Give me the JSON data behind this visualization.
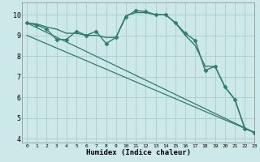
{
  "background_color": "#cce8e8",
  "grid_color": "#aacccc",
  "line_color": "#2e7d6e",
  "xlabel": "Humidex (Indice chaleur)",
  "xlim": [
    -0.5,
    23
  ],
  "ylim": [
    3.8,
    10.6
  ],
  "yticks": [
    4,
    5,
    6,
    7,
    8,
    9,
    10
  ],
  "xticks": [
    0,
    1,
    2,
    3,
    4,
    5,
    6,
    7,
    8,
    9,
    10,
    11,
    12,
    13,
    14,
    15,
    16,
    17,
    18,
    19,
    20,
    21,
    22,
    23
  ],
  "series": [
    {
      "x": [
        0,
        1,
        2,
        3,
        4,
        5,
        6,
        7,
        8,
        9,
        10,
        11,
        12,
        13,
        14,
        15,
        16,
        17,
        18,
        19,
        20,
        21,
        22,
        23
      ],
      "y": [
        9.6,
        9.5,
        9.3,
        8.8,
        8.8,
        9.2,
        9.0,
        9.2,
        8.6,
        8.9,
        9.9,
        10.2,
        10.15,
        10.0,
        10.0,
        9.6,
        9.1,
        8.75,
        7.3,
        7.5,
        6.5,
        5.9,
        4.5,
        4.3
      ],
      "marker": "D",
      "markersize": 2.5,
      "linewidth": 1.0
    },
    {
      "x": [
        0,
        1,
        2,
        3,
        4,
        5,
        6,
        7,
        8,
        9,
        10,
        11,
        12,
        13,
        14,
        15,
        16,
        17,
        18,
        19,
        20,
        21,
        22,
        23
      ],
      "y": [
        9.6,
        9.55,
        9.4,
        9.3,
        9.1,
        9.1,
        9.0,
        9.0,
        8.9,
        8.9,
        9.95,
        10.1,
        10.1,
        10.0,
        10.0,
        9.6,
        9.0,
        8.5,
        7.5,
        7.5,
        6.5,
        5.9,
        4.5,
        4.3
      ],
      "marker": null,
      "linewidth": 1.0
    },
    {
      "x": [
        0,
        23
      ],
      "y": [
        9.6,
        4.3
      ],
      "marker": null,
      "linewidth": 0.9
    },
    {
      "x": [
        0,
        23
      ],
      "y": [
        9.0,
        4.3
      ],
      "marker": null,
      "linewidth": 0.9
    }
  ]
}
